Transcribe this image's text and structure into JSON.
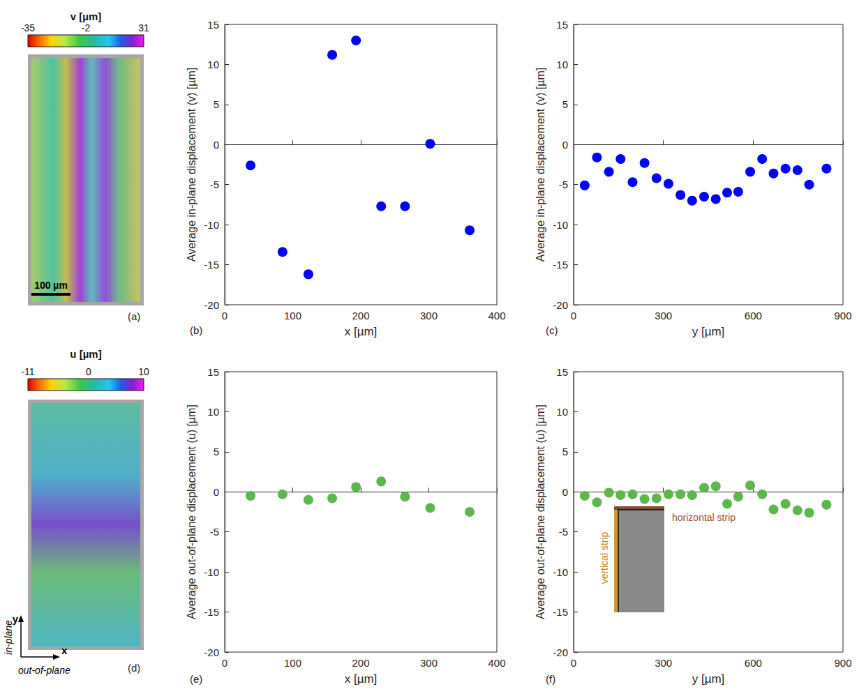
{
  "maps": [
    {
      "panel": "(a)",
      "title": "v [µm]",
      "colorbar": {
        "range": [
          -35,
          31
        ],
        "ticks": [
          -35,
          -2,
          31
        ]
      },
      "scale_bar": "100 µm"
    },
    {
      "panel": "(d)",
      "title": "u [µm]",
      "colorbar": {
        "range": [
          -11,
          10
        ],
        "ticks": [
          -11,
          0,
          10
        ]
      },
      "axes_labels": {
        "y": "y",
        "x": "x",
        "y_text": "in-plane",
        "x_text": "out-of-plane"
      }
    }
  ],
  "chart_data": [
    {
      "panel": "(b)",
      "type": "scatter",
      "x_label": "x [µm]",
      "y_label": "Average in-plane displacement (v) [µm]",
      "x": [
        38,
        85,
        123,
        158,
        193,
        230,
        265,
        302,
        360
      ],
      "values": [
        -2.6,
        -13.4,
        -16.2,
        11.2,
        13,
        -7.7,
        -7.7,
        0.1,
        -10.7
      ],
      "color": "#0000ff",
      "marker": "circle",
      "grid": false,
      "xlim": [
        0,
        400
      ],
      "xticks": [
        0,
        100,
        200,
        300,
        400
      ],
      "ylim": [
        -20,
        15
      ],
      "yticks": [
        -20,
        -15,
        -10,
        -5,
        0,
        5,
        10,
        15
      ]
    },
    {
      "panel": "(c)",
      "type": "scatter",
      "x_label": "y [µm]",
      "y_label": "Average in-plane displacement (v) [µm]",
      "x": [
        37,
        78,
        118,
        157,
        197,
        237,
        277,
        317,
        357,
        396,
        436,
        475,
        513,
        550,
        590,
        630,
        668,
        708,
        748,
        787,
        845
      ],
      "values": [
        -5.1,
        -1.6,
        -3.4,
        -1.8,
        -4.7,
        -2.3,
        -4.2,
        -4.9,
        -6.3,
        -7,
        -6.5,
        -6.8,
        -6,
        -5.9,
        -3.4,
        -1.8,
        -3.6,
        -3,
        -3.2,
        -5,
        -3
      ],
      "color": "#0000ff",
      "marker": "circle",
      "grid": false,
      "xlim": [
        0,
        900
      ],
      "xticks": [
        0,
        300,
        600,
        900
      ],
      "ylim": [
        -20,
        15
      ],
      "yticks": [
        -20,
        -15,
        -10,
        -5,
        0,
        5,
        10,
        15
      ]
    },
    {
      "panel": "(e)",
      "type": "scatter",
      "x_label": "x [µm]",
      "y_label": "Average out-of-plane displacement (u) [µm]",
      "x": [
        38,
        85,
        123,
        158,
        193,
        230,
        265,
        302,
        360
      ],
      "values": [
        -0.5,
        -0.3,
        -1,
        -0.8,
        0.6,
        1.3,
        -0.6,
        -2,
        -2.5
      ],
      "color": "#5cb84c",
      "marker": "circle",
      "grid": false,
      "xlim": [
        0,
        400
      ],
      "xticks": [
        0,
        100,
        200,
        300,
        400
      ],
      "ylim": [
        -20,
        15
      ],
      "yticks": [
        -20,
        -15,
        -10,
        -5,
        0,
        5,
        10,
        15
      ]
    },
    {
      "panel": "(f)",
      "type": "scatter",
      "x_label": "y [µm]",
      "y_label": "Average out-of-plane displacement (u) [µm]",
      "x": [
        37,
        78,
        118,
        157,
        197,
        237,
        277,
        317,
        357,
        396,
        436,
        475,
        513,
        550,
        590,
        630,
        668,
        708,
        748,
        787,
        845
      ],
      "values": [
        -0.5,
        -1.3,
        -0.1,
        -0.4,
        -0.3,
        -0.9,
        -0.8,
        -0.3,
        -0.3,
        -0.4,
        0.5,
        0.7,
        -1.5,
        -0.6,
        0.8,
        -0.3,
        -2.2,
        -1.5,
        -2.3,
        -2.6,
        -1.6
      ],
      "color": "#5cb84c",
      "marker": "circle",
      "grid": false,
      "xlim": [
        0,
        900
      ],
      "xticks": [
        0,
        300,
        600,
        900
      ],
      "ylim": [
        -20,
        15
      ],
      "yticks": [
        -20,
        -15,
        -10,
        -5,
        0,
        5,
        10,
        15
      ],
      "annotations": [
        "vertical strip",
        "horizontal strip"
      ]
    }
  ]
}
